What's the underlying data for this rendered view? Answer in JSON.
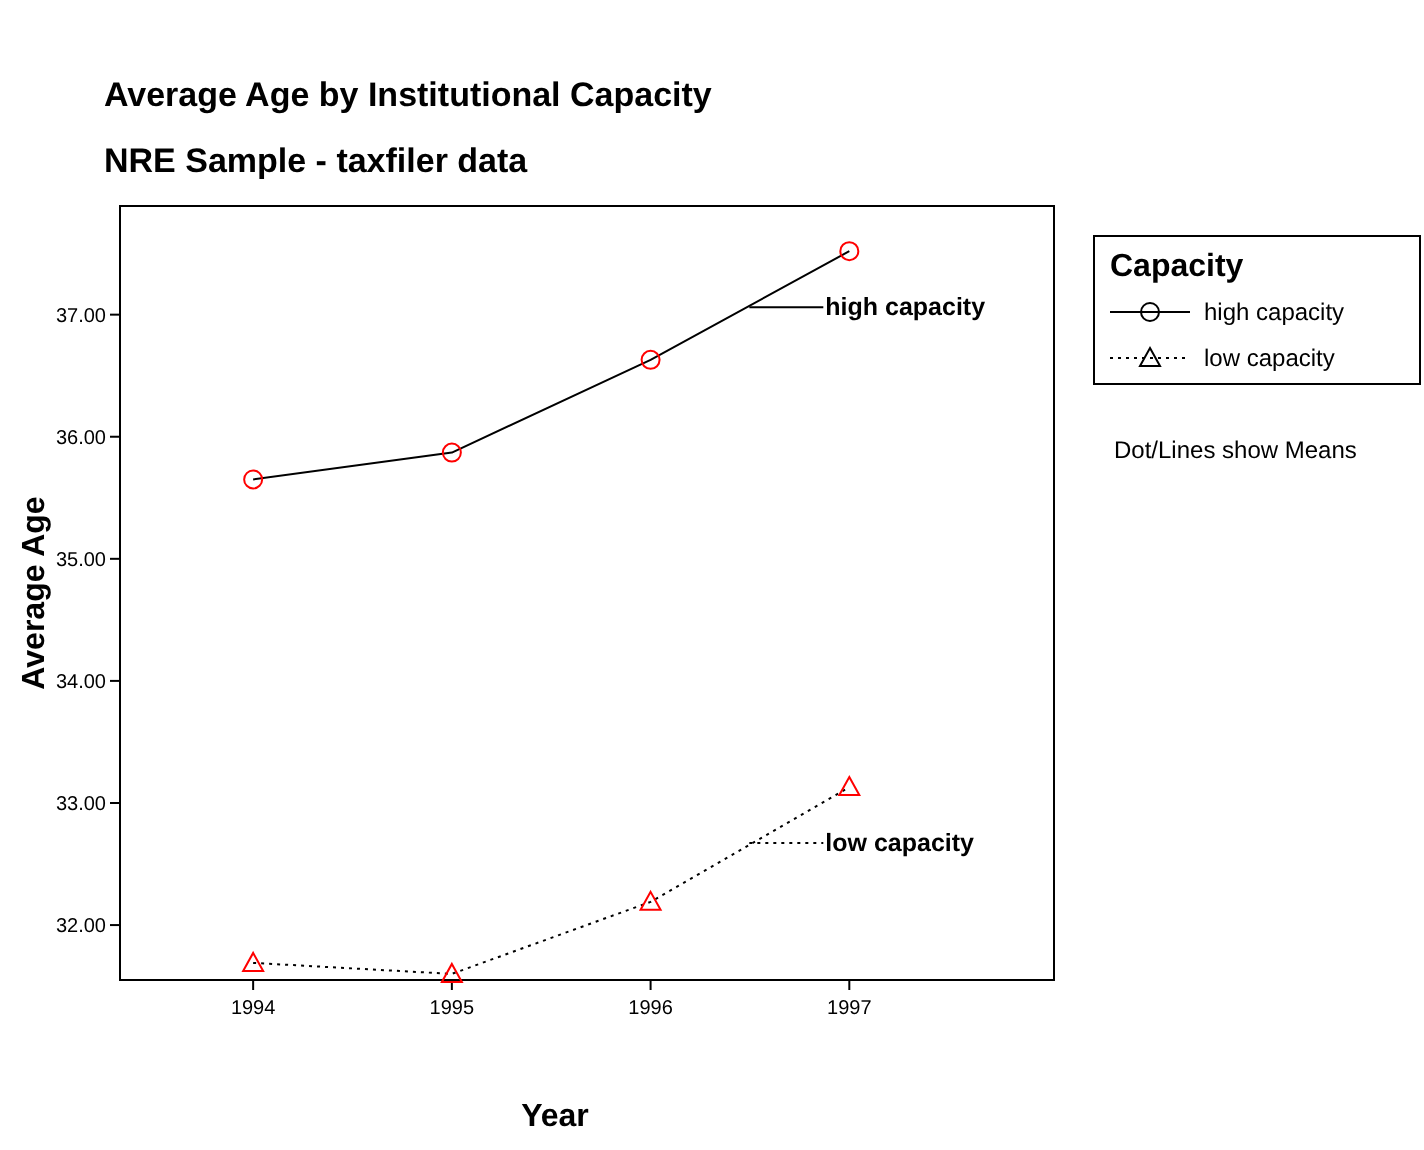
{
  "chart_data": {
    "type": "line",
    "title": "Average Age by Institutional Capacity",
    "subtitle": "NRE Sample - taxfiler data",
    "xlabel": "Year",
    "ylabel": "Average Age",
    "legend_title": "Capacity",
    "legend": "top right",
    "annotations": [
      "Dot/Lines show Means"
    ],
    "x": [
      1994,
      1995,
      1996,
      1997
    ],
    "xlim": [
      1993.33,
      1998.03
    ],
    "xticks": [
      1994,
      1995,
      1996,
      1997
    ],
    "ylim": [
      31.55,
      37.89
    ],
    "yticks": [
      {
        "value": 32,
        "label": "32.00"
      },
      {
        "value": 33,
        "label": "33.00"
      },
      {
        "value": 34,
        "label": "34.00"
      },
      {
        "value": 35,
        "label": "35.00"
      },
      {
        "value": 36,
        "label": "36.00"
      },
      {
        "value": 37,
        "label": "37.00"
      }
    ],
    "grid": false,
    "series": [
      {
        "name": "high capacity",
        "color": "#000000",
        "marker": "circle",
        "line_style": "solid",
        "values": [
          35.65,
          35.87,
          36.63,
          37.52
        ]
      },
      {
        "name": "low capacity",
        "color": "#000000",
        "marker": "triangle",
        "line_style": "dotted",
        "values": [
          31.69,
          31.6,
          32.19,
          33.13
        ]
      }
    ]
  }
}
